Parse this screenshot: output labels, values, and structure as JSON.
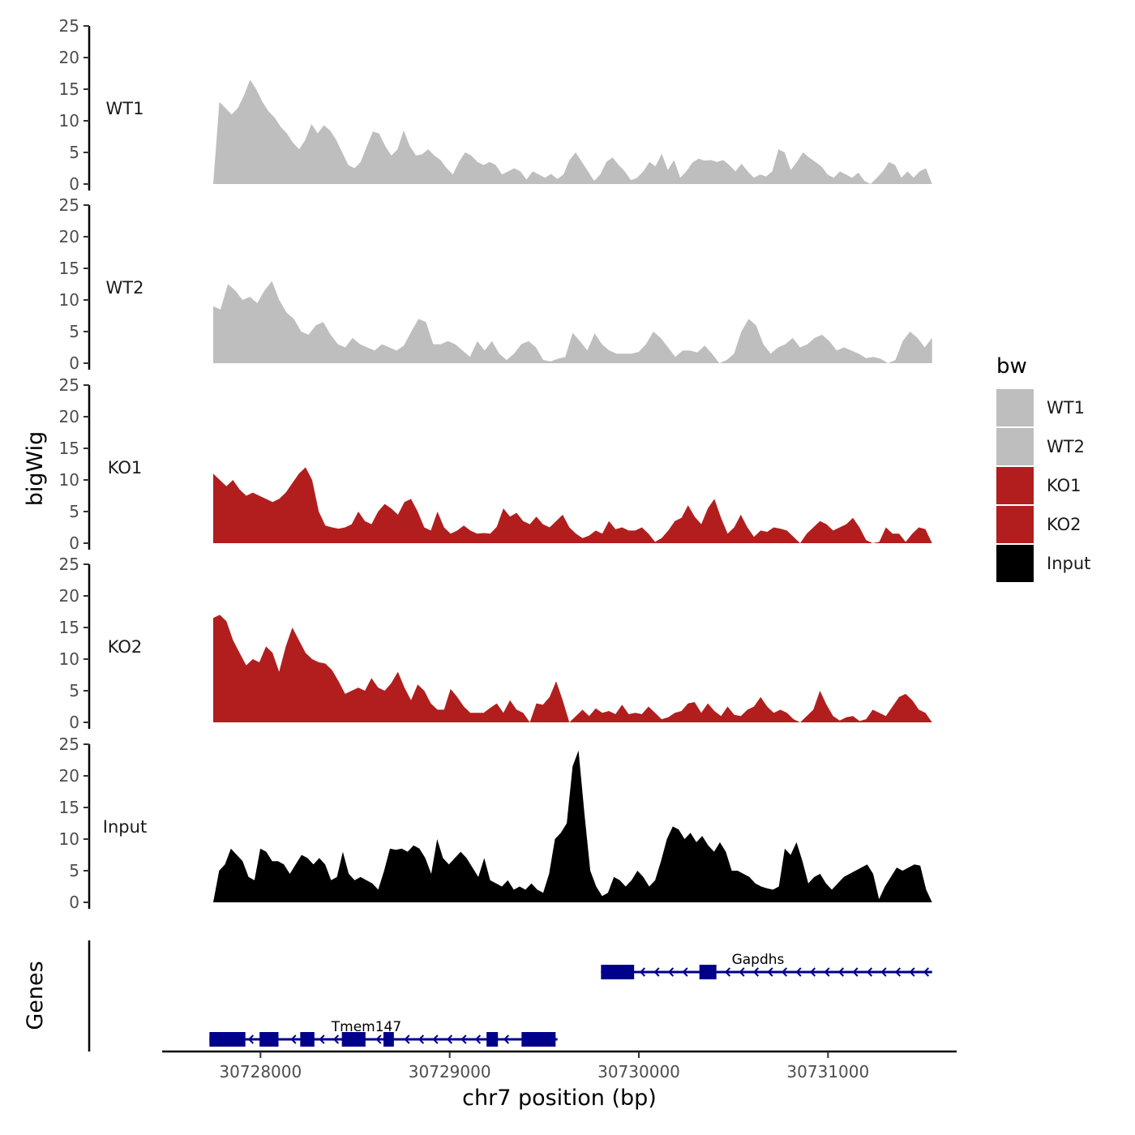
{
  "chart_data": {
    "type": "area",
    "ylabel": "bigWig",
    "xlabel": "chr7 position (bp)",
    "ylim": [
      0,
      25
    ],
    "yticks": [
      0,
      5,
      10,
      15,
      20,
      25
    ],
    "xlim": [
      30727480,
      30731680
    ],
    "xticks": [
      30728000,
      30729000,
      30730000,
      30731000
    ],
    "x_start": 30727750,
    "x_end": 30731550,
    "tracks": [
      {
        "name": "WT1",
        "label": "WT1",
        "color": "#bebebe",
        "values": [
          0,
          13,
          12,
          11,
          12,
          14,
          16.5,
          15,
          13,
          11.5,
          10.5,
          9,
          8,
          6.5,
          5.5,
          7,
          9.5,
          8,
          9.3,
          8.5,
          7,
          5,
          3,
          2.5,
          3.5,
          6,
          8.3,
          8,
          6,
          4.5,
          5.5,
          8.5,
          6,
          4.5,
          4.7,
          5.5,
          4.5,
          3.8,
          2.5,
          1.5,
          3.5,
          5,
          4.5,
          3.5,
          3,
          3.5,
          3,
          1.5,
          2,
          2.5,
          2,
          0.7,
          2,
          1.5,
          1,
          1.6,
          0.8,
          1.5,
          3.8,
          5,
          3.5,
          2,
          0.5,
          1.5,
          3.5,
          4.2,
          3,
          2,
          0.6,
          1,
          2,
          3.5,
          2.8,
          4.8,
          2.2,
          3.8,
          1,
          2,
          3.4,
          4,
          3.7,
          3.8,
          3.5,
          3.8,
          3,
          2,
          3.2,
          2,
          1,
          1.5,
          1.2,
          2,
          5.5,
          5,
          2.2,
          3.5,
          5,
          4.2,
          3.5,
          2.8,
          1.5,
          1,
          2,
          1.5,
          1,
          1.8,
          0.5,
          0,
          1,
          2,
          3.5,
          3,
          1,
          2,
          1,
          2,
          2.5,
          0
        ]
      },
      {
        "name": "WT2",
        "label": "WT2",
        "color": "#bebebe",
        "values": [
          9,
          8.5,
          12.5,
          11.5,
          10,
          10.5,
          9.5,
          11.5,
          13,
          10,
          8,
          7,
          5,
          4.5,
          6,
          6.5,
          4.5,
          3,
          2.5,
          4,
          3,
          2.5,
          2,
          3,
          2.5,
          2,
          2.8,
          5,
          7,
          6.5,
          3,
          3,
          3.5,
          3,
          2,
          1,
          3.5,
          2,
          3.5,
          1.5,
          0.5,
          1.5,
          3,
          3.5,
          2.5,
          0.5,
          0.3,
          0.7,
          1,
          4.8,
          3.5,
          2,
          4.7,
          3,
          2,
          1.5,
          1.5,
          1.5,
          1.8,
          3,
          5,
          4,
          2.5,
          1,
          2,
          2,
          1.7,
          2.8,
          1.5,
          0,
          0.5,
          1.5,
          5,
          7,
          6,
          3,
          1.5,
          2.5,
          3,
          4,
          2.5,
          3,
          4,
          4.5,
          3.5,
          2,
          2.5,
          2,
          1.5,
          0.8,
          1,
          0.7,
          0,
          0.5,
          3.5,
          5,
          4,
          2.5,
          4
        ]
      },
      {
        "name": "KO1",
        "label": "KO1",
        "color": "#b21e1e",
        "values": [
          11,
          10,
          9,
          10,
          8.5,
          7.5,
          8,
          7.5,
          7,
          6.5,
          7,
          8,
          9.5,
          11,
          12,
          10,
          5,
          2.8,
          2.5,
          2.3,
          2.5,
          3,
          5,
          3.5,
          3,
          5,
          6.2,
          5.5,
          4.5,
          6.5,
          7,
          5,
          2.5,
          2,
          5,
          2.5,
          1.5,
          2,
          2.8,
          2,
          1.5,
          1.6,
          1.5,
          2.6,
          5.5,
          4.2,
          4.8,
          3.5,
          3,
          4.2,
          3,
          2.5,
          3.5,
          4.5,
          2.5,
          1.5,
          0.8,
          1.2,
          2,
          1.5,
          3.5,
          2.2,
          2.5,
          2,
          2,
          2.5,
          1.5,
          0.2,
          0.8,
          2,
          3.5,
          4,
          6,
          4.2,
          3,
          5.5,
          7,
          4,
          1.5,
          2.5,
          4.5,
          2.5,
          1,
          2,
          1.8,
          2.5,
          2.3,
          2,
          1,
          0,
          1.5,
          2.5,
          3.5,
          3,
          2,
          2.5,
          3,
          4,
          2.5,
          0.5,
          0,
          0.2,
          2.5,
          1.5,
          1.5,
          0.2,
          1.5,
          2.5,
          2.2,
          0
        ]
      },
      {
        "name": "KO2",
        "label": "KO2",
        "color": "#b21e1e",
        "values": [
          16.5,
          17,
          16,
          13,
          11,
          9,
          10,
          9.5,
          12,
          11,
          8,
          12,
          15,
          13,
          11,
          10,
          9.5,
          9.3,
          8.3,
          6.5,
          4.5,
          5,
          5.5,
          5,
          7,
          5.5,
          5,
          6.2,
          8,
          5.5,
          3.5,
          6,
          5,
          3,
          2,
          2,
          5.3,
          4,
          2.5,
          1.5,
          1.5,
          1.5,
          2.3,
          3,
          1.5,
          3.5,
          2,
          1.5,
          0,
          3,
          2.8,
          4,
          6.5,
          3.5,
          0,
          1,
          2,
          1,
          2.2,
          1.5,
          1.8,
          1.3,
          2.8,
          1.3,
          1.5,
          1.3,
          2.5,
          1.5,
          0.5,
          0.8,
          1.5,
          1.8,
          3,
          3.2,
          1.5,
          3,
          1.8,
          1,
          2.5,
          1.2,
          1,
          2,
          2.5,
          4,
          2.5,
          1.5,
          2,
          1.5,
          0.5,
          0,
          1,
          2,
          5,
          2.8,
          1,
          0.3,
          0.8,
          1,
          0.2,
          0.5,
          2,
          1.5,
          1,
          2.5,
          4,
          4.5,
          3.5,
          2,
          1.5,
          0
        ]
      },
      {
        "name": "Input",
        "label": "Input",
        "color": "#000000",
        "values": [
          0,
          5,
          6,
          8.5,
          7.5,
          6.5,
          4,
          3.5,
          8.5,
          8,
          6.5,
          6.5,
          6,
          4.5,
          6,
          7.5,
          7,
          6,
          7,
          6,
          3.5,
          4,
          8,
          4.5,
          3.5,
          4,
          3.5,
          3,
          2,
          5,
          8.5,
          8.3,
          8.5,
          8,
          9,
          8.5,
          7,
          4.5,
          10,
          7,
          6,
          7,
          8,
          7,
          5.5,
          4,
          7,
          3.5,
          3,
          2.5,
          3.5,
          2,
          2.5,
          2,
          3,
          2,
          1.5,
          4.5,
          10,
          11,
          12.5,
          21.5,
          24,
          14,
          5,
          2.5,
          1,
          1.5,
          4,
          3.5,
          2.5,
          3.5,
          5,
          4,
          2.5,
          3.5,
          6.5,
          10,
          12,
          11.5,
          10,
          11,
          9.5,
          10.5,
          9,
          8,
          9.5,
          8,
          5,
          5,
          4.5,
          4,
          3,
          2.5,
          2.2,
          2,
          2.5,
          8.5,
          7.5,
          9.5,
          6.5,
          3,
          4,
          4.5,
          3,
          2,
          3,
          4,
          4.5,
          5,
          5.5,
          6,
          4.5,
          0.5,
          2.5,
          4,
          5.5,
          5,
          5.5,
          6,
          5.8,
          2,
          0
        ]
      }
    ],
    "genes": {
      "title": "Genes",
      "color": "#00008b",
      "items": [
        {
          "name": "Gapdhs",
          "label": "Gapdhs",
          "start": 30729800,
          "end": 30731550,
          "strand": "-",
          "row": 1,
          "exons": [
            [
              30729800,
              30729975
            ],
            [
              30730320,
              30730410
            ]
          ],
          "label_x": 30730630
        },
        {
          "name": "Tmem147",
          "label": "Tmem147",
          "start": 30727730,
          "end": 30729570,
          "strand": "-",
          "row": 2,
          "exons": [
            [
              30727730,
              30727920
            ],
            [
              30727995,
              30728095
            ],
            [
              30728210,
              30728285
            ],
            [
              30728430,
              30728555
            ],
            [
              30728650,
              30728705
            ],
            [
              30729195,
              30729255
            ],
            [
              30729380,
              30729560
            ]
          ],
          "label_x": 30728560
        }
      ]
    },
    "legend": {
      "title": "bw",
      "items": [
        {
          "label": "WT1",
          "color": "#bebebe"
        },
        {
          "label": "WT2",
          "color": "#bebebe"
        },
        {
          "label": "KO1",
          "color": "#b21e1e"
        },
        {
          "label": "KO2",
          "color": "#b21e1e"
        },
        {
          "label": "Input",
          "color": "#000000"
        }
      ]
    },
    "x_tick_labels": [
      "30728000",
      "30729000",
      "30730000",
      "30731000"
    ],
    "y_tick_labels": [
      "0",
      "5",
      "10",
      "15",
      "20",
      "25"
    ]
  }
}
